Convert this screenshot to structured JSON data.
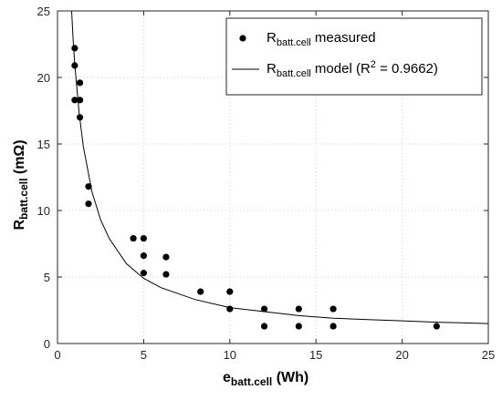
{
  "chart_data": {
    "type": "scatter",
    "xlim": [
      0,
      25
    ],
    "ylim": [
      0,
      25
    ],
    "xticks": [
      0,
      5,
      10,
      15,
      20,
      25
    ],
    "yticks": [
      0,
      5,
      10,
      15,
      20,
      25
    ],
    "grid": true,
    "legend_position": "top-right",
    "xlabel": {
      "main": "e",
      "sub": "batt.cell",
      "unit": " (Wh)"
    },
    "ylabel": {
      "main": "R",
      "sub": "batt.cell",
      "unit": " (mΩ)"
    },
    "series": [
      {
        "name": "R_batt.cell measured",
        "legend": {
          "main": "R",
          "sub": "batt.cell",
          "rest": " measured"
        },
        "kind": "scatter",
        "color": "#000000",
        "points": [
          {
            "x": 1.0,
            "y": 22.2
          },
          {
            "x": 1.0,
            "y": 20.9
          },
          {
            "x": 1.0,
            "y": 18.3
          },
          {
            "x": 1.3,
            "y": 19.6
          },
          {
            "x": 1.3,
            "y": 18.3
          },
          {
            "x": 1.3,
            "y": 17.0
          },
          {
            "x": 1.8,
            "y": 11.8
          },
          {
            "x": 1.8,
            "y": 10.5
          },
          {
            "x": 4.4,
            "y": 7.9
          },
          {
            "x": 5.0,
            "y": 7.9
          },
          {
            "x": 5.0,
            "y": 6.6
          },
          {
            "x": 5.0,
            "y": 5.3
          },
          {
            "x": 6.3,
            "y": 6.5
          },
          {
            "x": 6.3,
            "y": 5.2
          },
          {
            "x": 8.3,
            "y": 3.9
          },
          {
            "x": 10.0,
            "y": 3.9
          },
          {
            "x": 10.0,
            "y": 2.6
          },
          {
            "x": 12.0,
            "y": 2.6
          },
          {
            "x": 12.0,
            "y": 1.3
          },
          {
            "x": 14.0,
            "y": 2.6
          },
          {
            "x": 14.0,
            "y": 1.3
          },
          {
            "x": 16.0,
            "y": 2.6
          },
          {
            "x": 16.0,
            "y": 1.3
          },
          {
            "x": 22.0,
            "y": 1.3
          }
        ]
      },
      {
        "name": "R_batt.cell model (R^2 = 0.9662)",
        "legend": {
          "main": "R",
          "sub": "batt.cell",
          "rest": " model (R",
          "sup": "2",
          "tail": " = 0.9662)"
        },
        "kind": "line",
        "color": "#000000",
        "x": [
          0.82,
          0.9,
          1,
          1.25,
          1.5,
          2,
          2.5,
          3,
          4,
          5,
          6,
          8,
          10,
          12,
          14,
          16,
          18,
          20,
          22,
          25
        ],
        "y": [
          25.0,
          23.0,
          21.0,
          17.4,
          14.8,
          11.4,
          9.3,
          7.9,
          6.0,
          4.9,
          4.2,
          3.3,
          2.7,
          2.4,
          2.1,
          1.9,
          1.8,
          1.7,
          1.6,
          1.5
        ]
      }
    ]
  }
}
